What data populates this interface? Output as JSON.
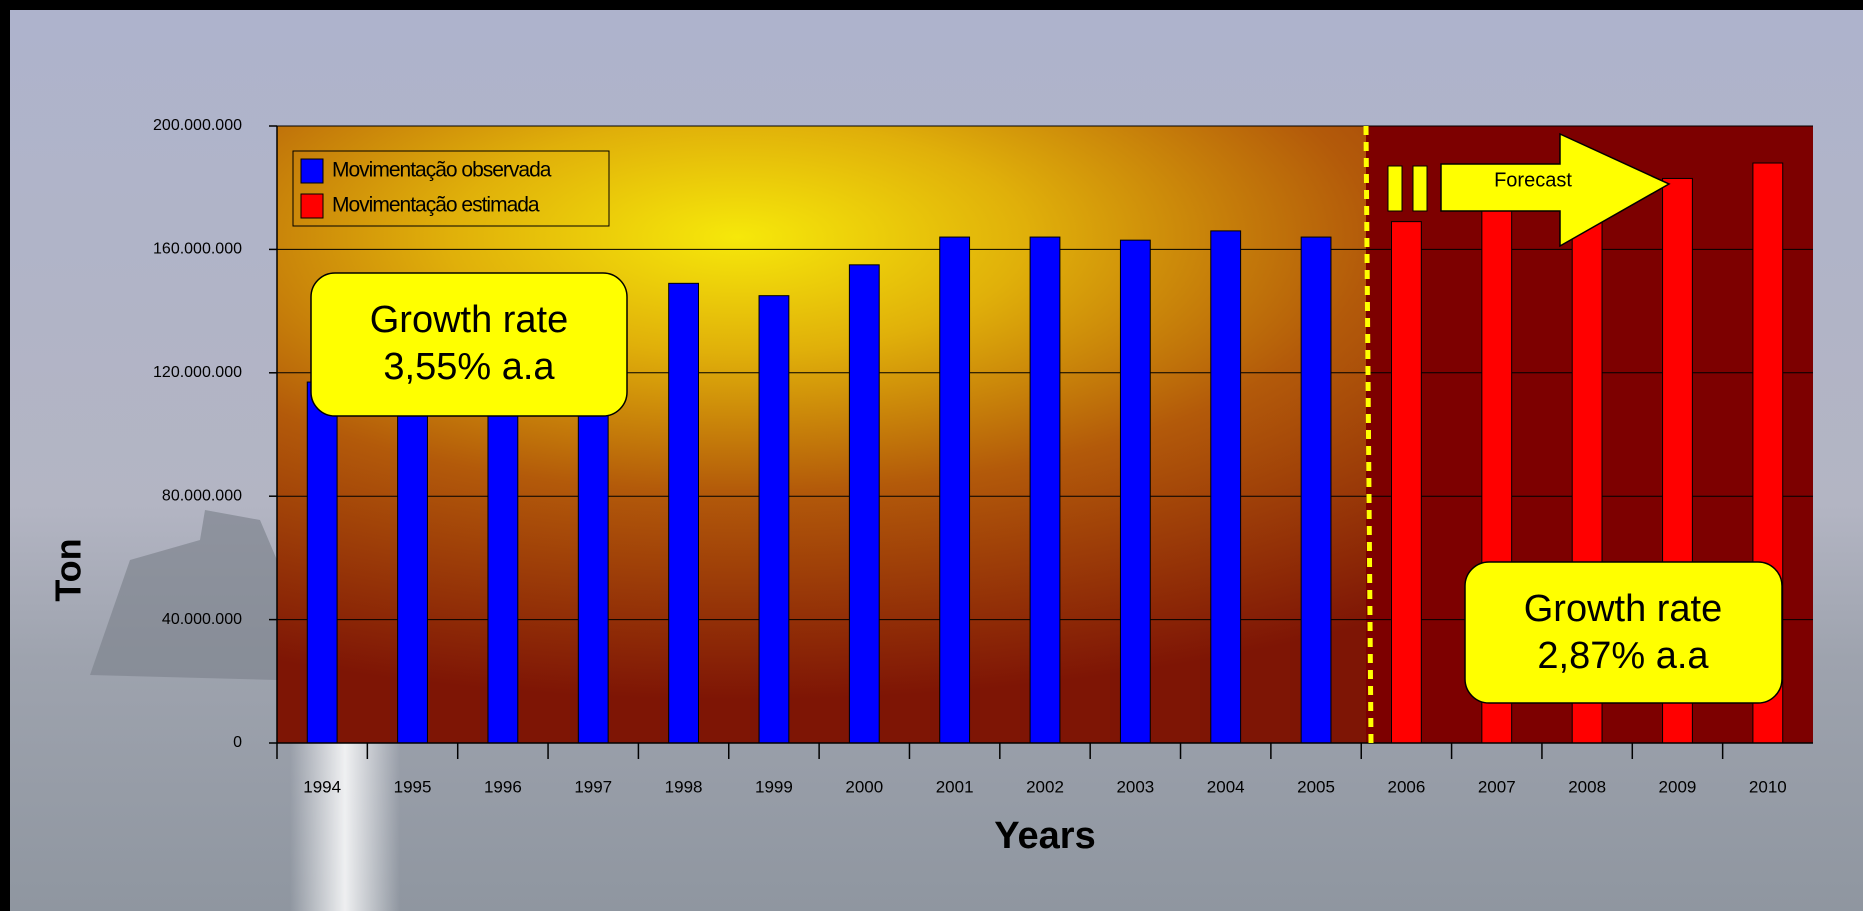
{
  "chart_data": {
    "type": "bar",
    "x_label": "Years",
    "y_label": "Ton",
    "categories": [
      "1994",
      "1995",
      "1996",
      "1997",
      "1998",
      "1999",
      "2000",
      "2001",
      "2002",
      "2003",
      "2004",
      "2005",
      "2006",
      "2007",
      "2008",
      "2009",
      "2010"
    ],
    "series": [
      {
        "name": "Movimentação observada",
        "color": "#0000ff",
        "values": [
          117000000,
          125000000,
          130000000,
          138000000,
          149000000,
          145000000,
          155000000,
          164000000,
          164000000,
          163000000,
          166000000,
          164000000,
          null,
          null,
          null,
          null,
          null
        ]
      },
      {
        "name": "Movimentação estimada",
        "color": "#ff0000",
        "values": [
          null,
          null,
          null,
          null,
          null,
          null,
          null,
          null,
          null,
          null,
          null,
          null,
          169000000,
          174000000,
          178000000,
          183000000,
          188000000
        ]
      }
    ],
    "ylim": [
      0,
      200000000
    ],
    "yticks": [
      0,
      {
        "value": 40000000,
        "label": "40.000.000"
      },
      {
        "value": 80000000,
        "label": "80.000.000"
      },
      {
        "value": 120000000,
        "label": "120.000.000"
      },
      {
        "value": 160000000,
        "label": "160.000.000"
      },
      {
        "value": 200000000,
        "label": "200.000.000"
      }
    ],
    "grid": true,
    "legend": "upper left",
    "callouts": [
      {
        "title": "Growth rate",
        "rate": "3,55% a.a"
      },
      {
        "title": "Growth rate",
        "rate": "2,87% a.a"
      }
    ],
    "forecast_label": "Forecast"
  }
}
